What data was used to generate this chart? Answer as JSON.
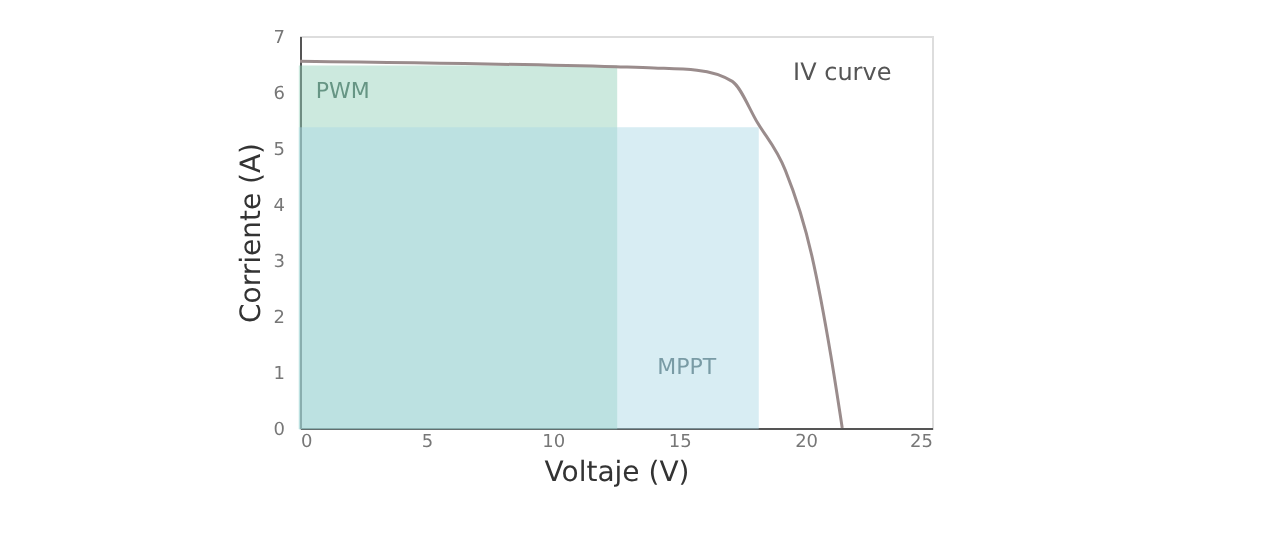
{
  "chart_data": {
    "type": "line",
    "xlabel": "Voltaje (V)",
    "ylabel": "Corriente (A)",
    "xlim": [
      0,
      25
    ],
    "xticks": [
      0,
      5,
      10,
      15,
      20,
      25
    ],
    "ylim": [
      0,
      7
    ],
    "yticks": [
      0,
      1,
      2,
      3,
      4,
      5,
      6,
      7
    ],
    "grid": false,
    "legend": false,
    "series": [
      {
        "name": "PWM",
        "type": "area",
        "color": "#8fd0b8",
        "x": [
          0,
          12.5
        ],
        "values": [
          6.45,
          6.45
        ]
      },
      {
        "name": "MPPT",
        "type": "area",
        "color": "#a9d8e6",
        "x": [
          0,
          18.1
        ],
        "values": [
          5.35,
          5.35
        ]
      },
      {
        "name": "IV curve",
        "color": "#9a8c8c",
        "x": [
          0,
          12.5,
          14,
          15.7,
          17.1,
          18.1,
          19.2,
          20.25,
          21.0,
          21.45
        ],
        "values": [
          6.55,
          6.45,
          6.43,
          6.39,
          6.19,
          5.45,
          4.6,
          3.07,
          1.29,
          0
        ]
      }
    ]
  }
}
